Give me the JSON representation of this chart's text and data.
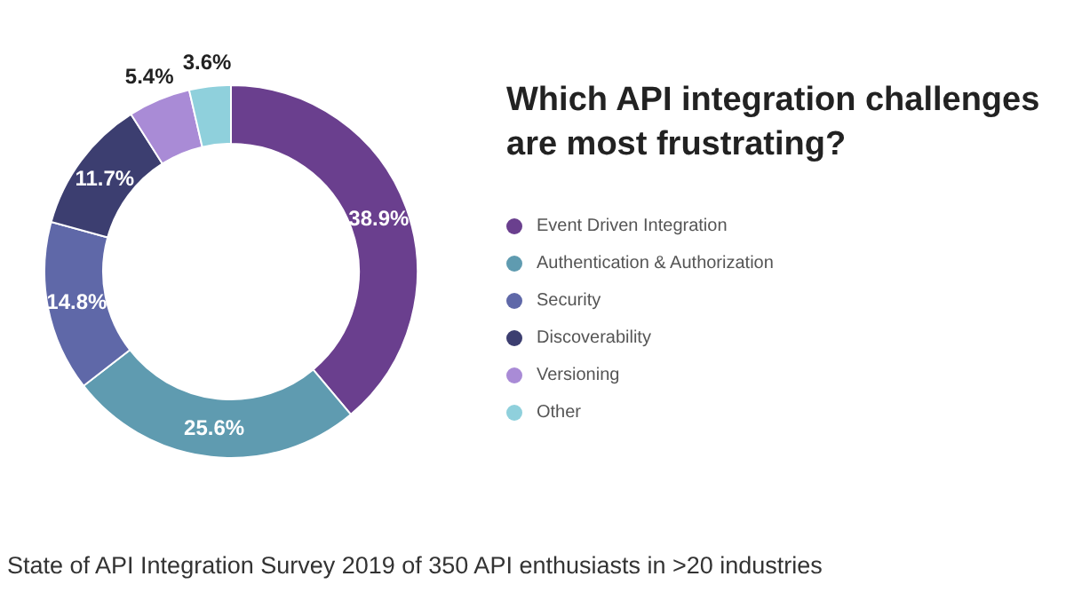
{
  "chart_data": {
    "type": "donut",
    "title": "Which API integration challenges are most frustrating?",
    "categories": [
      "Event Driven Integration",
      "Authentication & Authorization",
      "Security",
      "Discoverability",
      "Versioning",
      "Other"
    ],
    "values": [
      38.9,
      25.6,
      14.8,
      11.7,
      5.4,
      3.6
    ],
    "colors": [
      "#6a3f8e",
      "#5f9bb0",
      "#5f68a8",
      "#3c3e70",
      "#a98bd6",
      "#8fd0dc"
    ],
    "value_labels": [
      "38.9%",
      "25.6%",
      "14.8%",
      "11.7%",
      "5.4%",
      "3.6%"
    ],
    "legend": "right",
    "annotations": [
      "State of API Integration Survey 2019 of 350 API enthusiasts in >20 industries"
    ]
  }
}
